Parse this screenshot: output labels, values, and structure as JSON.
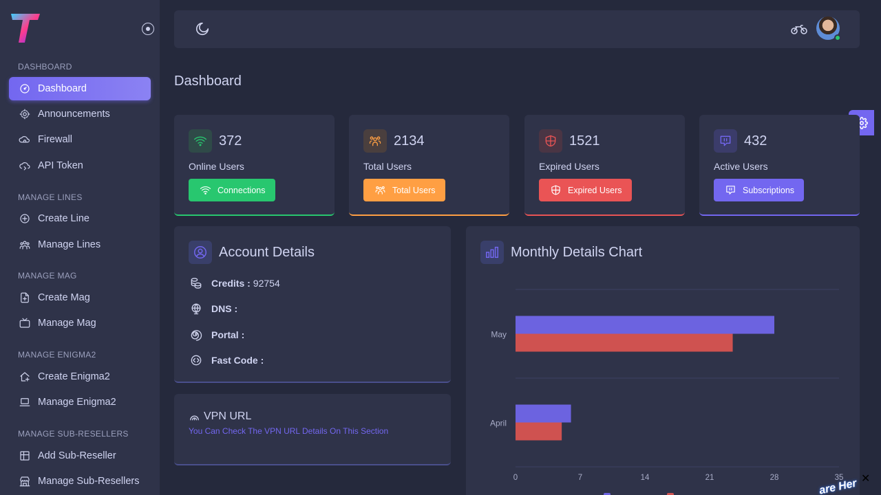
{
  "sidebar": {
    "sections": [
      {
        "title": "DASHBOARD",
        "items": [
          {
            "label": "Dashboard",
            "icon": "speedometer-icon",
            "active": true
          },
          {
            "label": "Announcements",
            "icon": "speaker-icon"
          },
          {
            "label": "Firewall",
            "icon": "cloud-lock-icon"
          },
          {
            "label": "API Token",
            "icon": "cloud-sync-icon"
          }
        ]
      },
      {
        "title": "MANAGE LINES",
        "items": [
          {
            "label": "Create Line",
            "icon": "plus-circle-icon"
          },
          {
            "label": "Manage Lines",
            "icon": "users-group-icon"
          }
        ]
      },
      {
        "title": "MANAGE MAG",
        "items": [
          {
            "label": "Create Mag",
            "icon": "file-plus-icon"
          },
          {
            "label": "Manage Mag",
            "icon": "tv-icon"
          }
        ]
      },
      {
        "title": "MANAGE ENIGMA2",
        "items": [
          {
            "label": "Create Enigma2",
            "icon": "home-plus-icon"
          },
          {
            "label": "Manage Enigma2",
            "icon": "laptop-icon"
          }
        ]
      },
      {
        "title": "MANAGE SUB-RESELLERS",
        "items": [
          {
            "label": "Add Sub-Reseller",
            "icon": "table-plus-icon"
          },
          {
            "label": "Manage Sub-Resellers",
            "icon": "building-store-icon"
          }
        ]
      }
    ]
  },
  "page": {
    "title": "Dashboard"
  },
  "stats": [
    {
      "value": "372",
      "label": "Online Users",
      "button": "Connections",
      "color": "#28c76f",
      "icon": "wifi-icon"
    },
    {
      "value": "2134",
      "label": "Total Users",
      "button": "Total Users",
      "color": "#ff9f43",
      "icon": "users-icon"
    },
    {
      "value": "1521",
      "label": "Expired Users",
      "button": "Expired Users",
      "color": "#ea5455",
      "icon": "shield-icon"
    },
    {
      "value": "432",
      "label": "Active Users",
      "button": "Subscriptions",
      "color": "#7367f0",
      "icon": "message-icon"
    }
  ],
  "account": {
    "title": "Account Details",
    "rows": [
      {
        "key": "Credits :",
        "value": "92754",
        "icon": "coins-icon"
      },
      {
        "key": "DNS :",
        "value": "",
        "icon": "globe-icon"
      },
      {
        "key": "Portal :",
        "value": "",
        "icon": "spiral-icon"
      },
      {
        "key": "Fast Code :",
        "value": "",
        "icon": "code-circle-icon"
      }
    ]
  },
  "vpn": {
    "title": "VPN URL",
    "subtitle": "You Can Check The VPN URL Details On This Section"
  },
  "colors": {
    "accent": "#7367f0",
    "danger": "#ea5455",
    "chart_red": "#d9534f"
  },
  "chart_data": {
    "type": "bar",
    "orientation": "horizontal",
    "title": "Monthly Details Chart",
    "categories": [
      "May",
      "April"
    ],
    "series": [
      {
        "values": [
          28,
          6
        ],
        "color": "#6c63e0"
      },
      {
        "values": [
          23.5,
          5
        ],
        "color": "#cf5250"
      }
    ],
    "xticks": [
      0,
      7,
      14,
      21,
      28,
      35
    ],
    "xlim": [
      0,
      35
    ],
    "grid": true
  },
  "overlay": {
    "close": "✕",
    "watermark": "are Her"
  }
}
